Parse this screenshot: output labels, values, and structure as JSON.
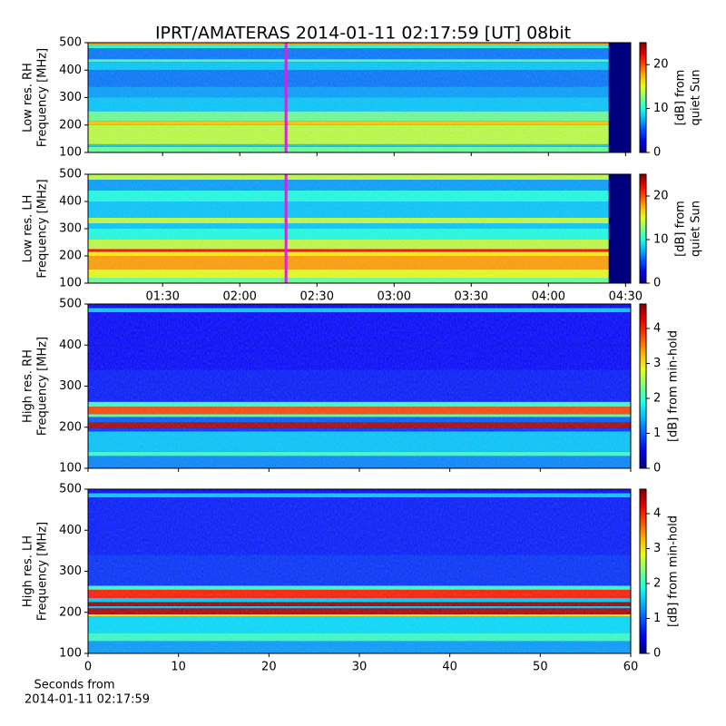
{
  "title": "IPRT/AMATERAS 2014-01-11 02:17:59 [UT]   08bit",
  "chart_data": [
    {
      "type": "heatmap",
      "colormap": "jet",
      "ylabel": [
        "Low res. RH",
        "Frequency [MHz]"
      ],
      "ylim": [
        100,
        500
      ],
      "yticks": [
        100,
        200,
        300,
        400,
        500
      ],
      "xlim": [
        61,
        272
      ],
      "data_xlim": [
        61,
        263.4
      ],
      "show_xtick_labels": false,
      "xticks": [
        {
          "value": 90,
          "label": "01:30"
        },
        {
          "value": 120,
          "label": "02:00"
        },
        {
          "value": 150,
          "label": "02:30"
        },
        {
          "value": 180,
          "label": "03:00"
        },
        {
          "value": 210,
          "label": "03:30"
        },
        {
          "value": 240,
          "label": "04:00"
        },
        {
          "value": 270,
          "label": "04:30"
        }
      ],
      "marker_x": 137.98,
      "marker_color": "#e020e0",
      "clim": [
        0,
        25
      ],
      "cticks": [
        0,
        10,
        20
      ],
      "colorbar_label": [
        "[dB] from",
        "quiet Sun"
      ],
      "freq_edges": [
        100,
        120,
        130,
        200,
        215,
        250,
        300,
        340,
        400,
        430,
        440,
        480,
        490,
        500
      ],
      "levels": [
        12,
        8,
        14,
        17,
        12,
        8,
        7,
        6,
        8,
        11,
        6,
        10,
        18
      ]
    },
    {
      "type": "heatmap",
      "colormap": "jet",
      "ylabel": [
        "Low res. LH",
        "Frequency [MHz]"
      ],
      "ylim": [
        100,
        500
      ],
      "yticks": [
        100,
        200,
        300,
        400,
        500
      ],
      "xlim": [
        61,
        272
      ],
      "data_xlim": [
        61,
        263.4
      ],
      "show_xtick_labels": true,
      "xticks": [
        {
          "value": 90,
          "label": "01:30"
        },
        {
          "value": 120,
          "label": "02:00"
        },
        {
          "value": 150,
          "label": "02:30"
        },
        {
          "value": 180,
          "label": "03:00"
        },
        {
          "value": 210,
          "label": "03:30"
        },
        {
          "value": 240,
          "label": "04:00"
        },
        {
          "value": 270,
          "label": "04:30"
        }
      ],
      "marker_x": 137.98,
      "marker_color": "#e020e0",
      "clim": [
        0,
        25
      ],
      "cticks": [
        0,
        10,
        20
      ],
      "colorbar_label": [
        "[dB] from",
        "quiet Sun"
      ],
      "freq_edges": [
        100,
        120,
        150,
        200,
        215,
        225,
        260,
        300,
        320,
        340,
        400,
        440,
        480,
        500
      ],
      "levels": [
        12,
        15,
        18,
        16,
        22,
        14,
        10,
        8,
        14,
        8,
        10,
        7,
        14
      ]
    },
    {
      "type": "heatmap",
      "colormap": "jet",
      "ylabel": [
        "High res. RH",
        "Frequency [MHz]"
      ],
      "ylim": [
        100,
        500
      ],
      "yticks": [
        100,
        200,
        300,
        400,
        500
      ],
      "xlim": [
        0,
        60
      ],
      "xticks": [
        0,
        10,
        20,
        30,
        40,
        50,
        60
      ],
      "show_xtick_labels": false,
      "clim": [
        0,
        4.7
      ],
      "cticks": [
        0,
        1,
        2,
        3,
        4
      ],
      "colorbar_label": [
        "[dB] from min-hold"
      ],
      "freq_edges": [
        100,
        130,
        140,
        190,
        198,
        212,
        225,
        232,
        250,
        262,
        340,
        400,
        480,
        490,
        500
      ],
      "levels": [
        1.2,
        2,
        1.5,
        0.8,
        4.5,
        1,
        2.2,
        3.8,
        2,
        0.7,
        0.6,
        0.6,
        1.5,
        0.5
      ]
    },
    {
      "type": "heatmap",
      "colormap": "jet",
      "ylabel": [
        "High res. LH",
        "Frequency [MHz]"
      ],
      "ylim": [
        100,
        500
      ],
      "yticks": [
        100,
        200,
        300,
        400,
        500
      ],
      "xlim": [
        0,
        60
      ],
      "xticks": [
        0,
        10,
        20,
        30,
        40,
        50,
        60
      ],
      "show_xtick_labels": true,
      "xlabel": [
        "Seconds from",
        "2014-01-11 02:17:59"
      ],
      "clim": [
        0,
        4.7
      ],
      "cticks": [
        0,
        1,
        2,
        3,
        4
      ],
      "colorbar_label": [
        "[dB] from min-hold"
      ],
      "freq_edges": [
        100,
        130,
        150,
        190,
        195,
        210,
        215,
        225,
        235,
        255,
        265,
        340,
        480,
        490,
        500
      ],
      "levels": [
        1.3,
        2,
        1.6,
        3,
        4.5,
        1.5,
        4.6,
        1.5,
        4,
        2,
        0.8,
        0.7,
        1.5,
        0.6
      ]
    }
  ]
}
